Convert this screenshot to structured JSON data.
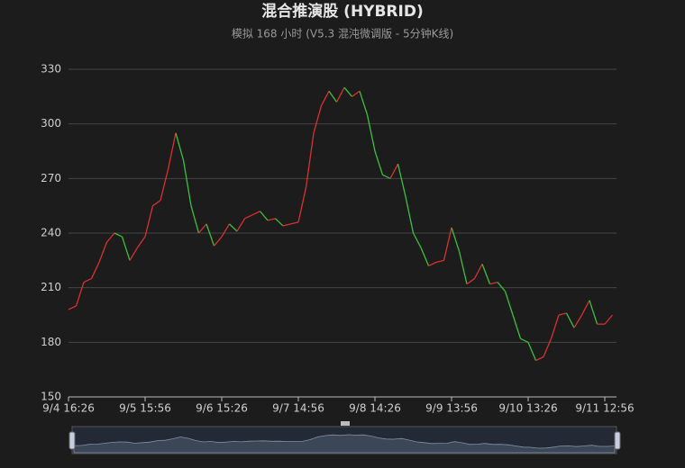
{
  "chart_data": {
    "type": "line",
    "title": "混合推演股 (HYBRID)",
    "subtitle": "模拟 168 小时 (V5.3 混沌微调版 - 5分钟K线)",
    "categories": [
      "9/4 16:26",
      null,
      null,
      null,
      null,
      null,
      null,
      null,
      null,
      null,
      "9/5 15:56",
      null,
      null,
      null,
      null,
      null,
      null,
      null,
      null,
      null,
      "9/6 15:26",
      null,
      null,
      null,
      null,
      null,
      null,
      null,
      null,
      null,
      "9/7 14:56",
      null,
      null,
      null,
      null,
      null,
      null,
      null,
      null,
      null,
      "9/8 14:26",
      null,
      null,
      null,
      null,
      null,
      null,
      null,
      null,
      null,
      "9/9 13:56",
      null,
      null,
      null,
      null,
      null,
      null,
      null,
      null,
      null,
      "9/10 13:26",
      null,
      null,
      null,
      null,
      null,
      null,
      null,
      null,
      null,
      "9/11 12:56",
      null
    ],
    "values": [
      198,
      200,
      213,
      215,
      224,
      235,
      240,
      238,
      225,
      232,
      238,
      255,
      258,
      275,
      295,
      280,
      255,
      240,
      245,
      233,
      238,
      245,
      241,
      248,
      250,
      252,
      247,
      248,
      244,
      245,
      246,
      265,
      295,
      310,
      318,
      312,
      320,
      315,
      318,
      305,
      285,
      272,
      270,
      278,
      260,
      240,
      232,
      222,
      224,
      225,
      243,
      230,
      212,
      215,
      223,
      212,
      213,
      208,
      195,
      182,
      180,
      170,
      172,
      182,
      195,
      196,
      188,
      195,
      203,
      190,
      190,
      195
    ],
    "up_color": "#d9312f",
    "down_color": "#3cc03c",
    "ylim": [
      150,
      330
    ],
    "yticks": [
      150,
      180,
      210,
      240,
      270,
      300,
      330
    ],
    "grid": true
  }
}
